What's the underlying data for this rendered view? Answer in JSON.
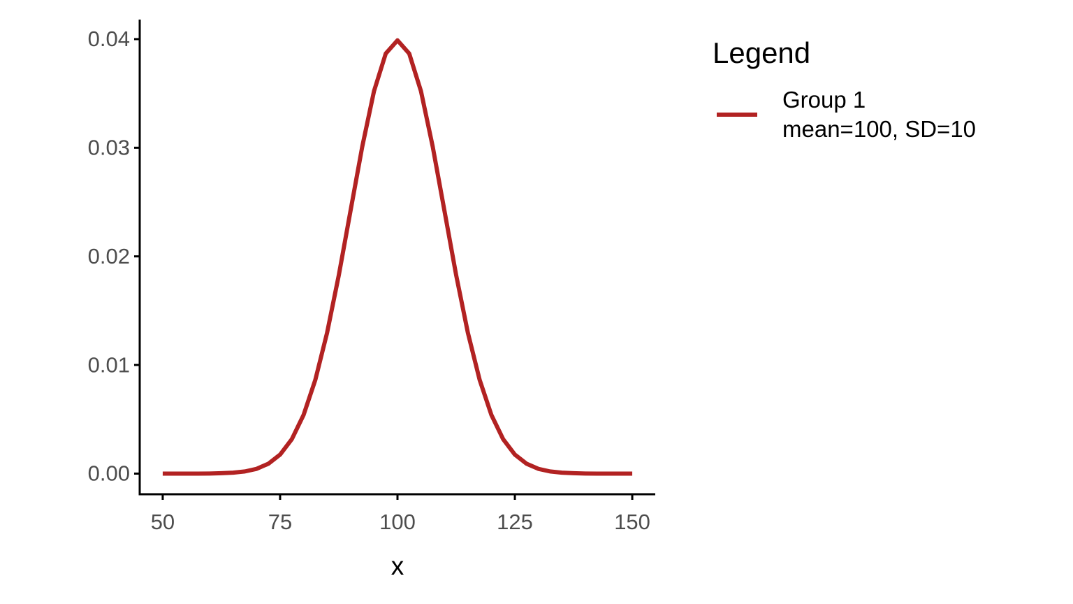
{
  "chart_data": {
    "type": "line",
    "x_label": "x",
    "legend_title": "Legend",
    "x": [
      50,
      52.5,
      55,
      57.5,
      60,
      62.5,
      65,
      67.5,
      70,
      72.5,
      75,
      77.5,
      80,
      82.5,
      85,
      87.5,
      90,
      92.5,
      95,
      97.5,
      100,
      102.5,
      105,
      107.5,
      110,
      112.5,
      115,
      117.5,
      120,
      122.5,
      125,
      127.5,
      130,
      132.5,
      135,
      137.5,
      140,
      142.5,
      145,
      147.5,
      150
    ],
    "series": [
      {
        "name": "Group 1\nmean=100, SD=10",
        "color": "#b22222",
        "values": [
          0,
          0,
          0,
          0,
          1e-05,
          4e-05,
          9e-05,
          0.0002,
          0.00044,
          0.00091,
          0.00175,
          0.00317,
          0.0054,
          0.00863,
          0.01295,
          0.01826,
          0.0242,
          0.03011,
          0.03521,
          0.03867,
          0.03989,
          0.03867,
          0.03521,
          0.03011,
          0.0242,
          0.01826,
          0.01295,
          0.00863,
          0.0054,
          0.00317,
          0.00175,
          0.00091,
          0.00044,
          0.0002,
          9e-05,
          4e-05,
          1e-05,
          0,
          0,
          0,
          0
        ]
      }
    ],
    "xlim": [
      45.1,
      154.9
    ],
    "ylim": [
      -0.0019,
      0.0418
    ],
    "xticks": [
      50,
      75,
      100,
      125,
      150
    ],
    "yticks": [
      {
        "value": 0,
        "label": "0.00"
      },
      0.01,
      0.02,
      0.03,
      0.04
    ]
  }
}
